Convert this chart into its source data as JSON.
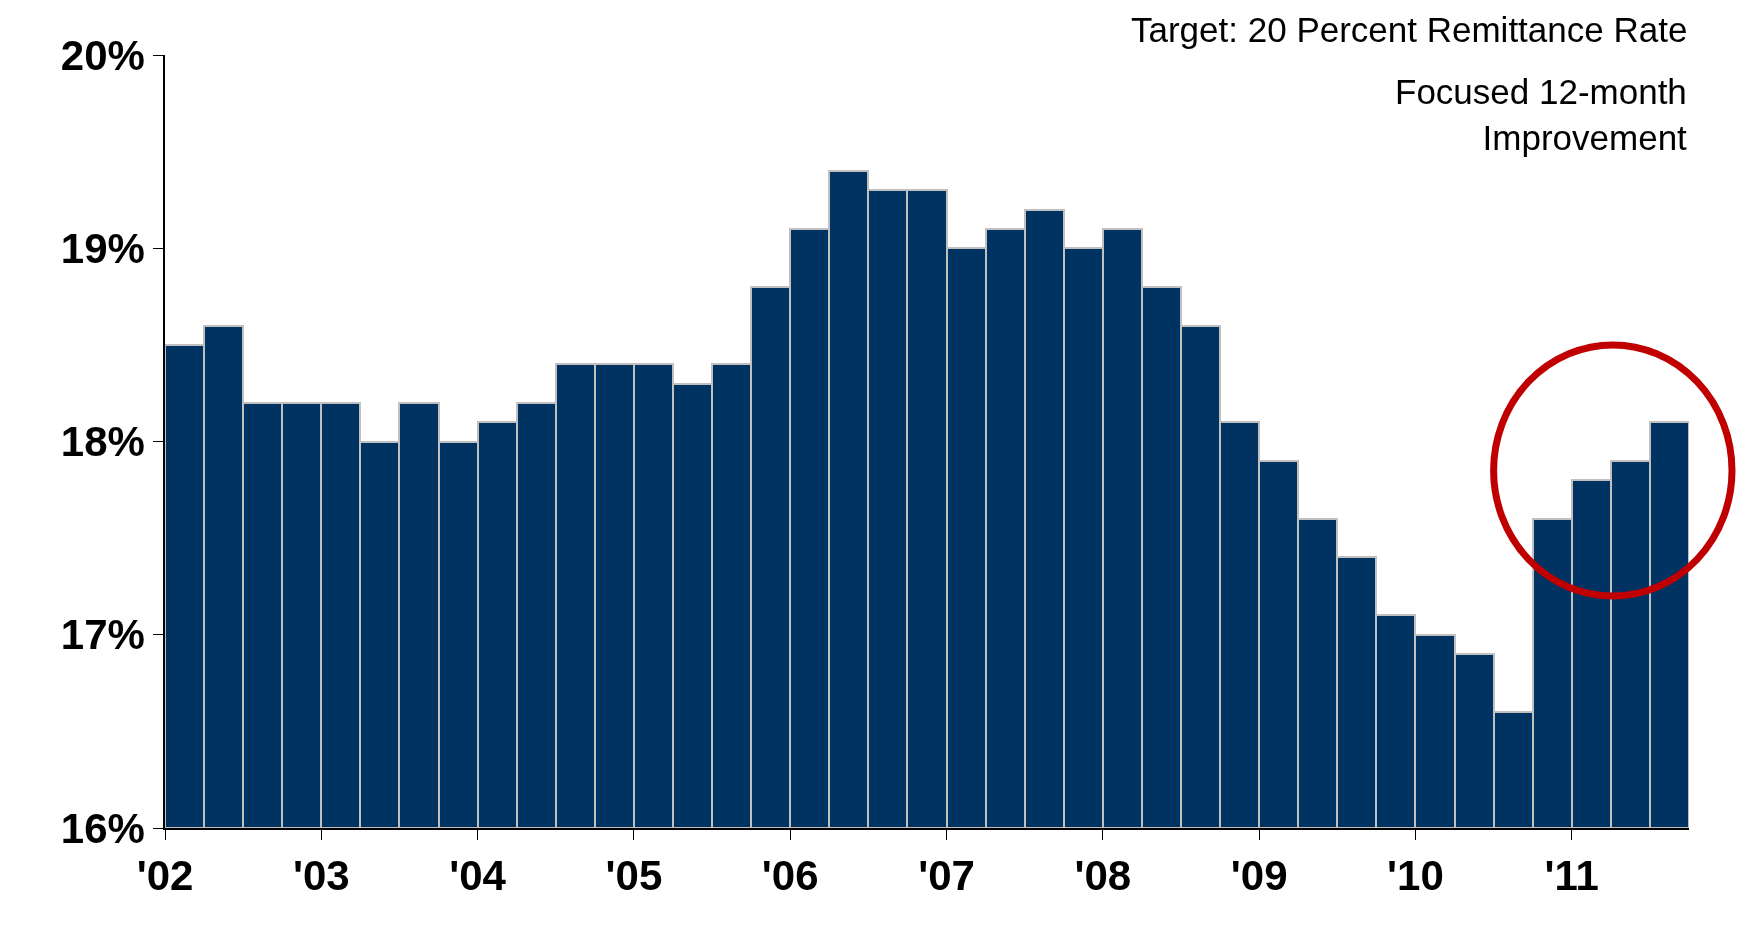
{
  "chart_data": {
    "type": "bar",
    "annotations": [
      "Target: 20 Percent Remittance Rate",
      "Focused 12-month\nImprovement"
    ],
    "x": [
      2002.125,
      2002.375,
      2002.625,
      2002.875,
      2003.125,
      2003.375,
      2003.625,
      2003.875,
      2004.125,
      2004.375,
      2004.625,
      2004.875,
      2005.125,
      2005.375,
      2005.625,
      2005.875,
      2006.125,
      2006.375,
      2006.625,
      2006.875,
      2007.125,
      2007.375,
      2007.625,
      2007.875,
      2008.125,
      2008.375,
      2008.625,
      2008.875,
      2009.125,
      2009.375,
      2009.625,
      2009.875,
      2010.125,
      2010.375,
      2010.625,
      2010.875,
      2011.125,
      2011.375,
      2011.625
    ],
    "values": [
      18.5,
      18.6,
      18.2,
      18.2,
      18.2,
      18.0,
      18.2,
      18.0,
      18.1,
      18.2,
      18.4,
      18.4,
      18.4,
      18.3,
      18.4,
      18.8,
      19.1,
      19.4,
      19.3,
      19.3,
      19.0,
      19.1,
      19.2,
      19.0,
      19.1,
      18.8,
      18.6,
      18.1,
      17.9,
      17.6,
      17.4,
      17.1,
      17.0,
      16.9,
      16.6,
      17.6,
      17.8,
      17.9,
      18.1
    ],
    "color": "#003262",
    "xlim": [
      2002,
      2011.75
    ],
    "xticks": [
      {
        "value": 2002,
        "label": "'02"
      },
      {
        "value": 2003,
        "label": "'03"
      },
      {
        "value": 2004,
        "label": "'04"
      },
      {
        "value": 2005,
        "label": "'05"
      },
      {
        "value": 2006,
        "label": "'06"
      },
      {
        "value": 2007,
        "label": "'07"
      },
      {
        "value": 2008,
        "label": "'08"
      },
      {
        "value": 2009,
        "label": "'09"
      },
      {
        "value": 2010,
        "label": "'10"
      },
      {
        "value": 2011,
        "label": "'11"
      }
    ],
    "ylim": [
      16,
      20
    ],
    "yticks": [
      {
        "value": 16,
        "label": "16%"
      },
      {
        "value": 17,
        "label": "17%"
      },
      {
        "value": 18,
        "label": "18%"
      },
      {
        "value": 19,
        "label": "19%"
      },
      {
        "value": 20,
        "label": "20%"
      }
    ]
  }
}
